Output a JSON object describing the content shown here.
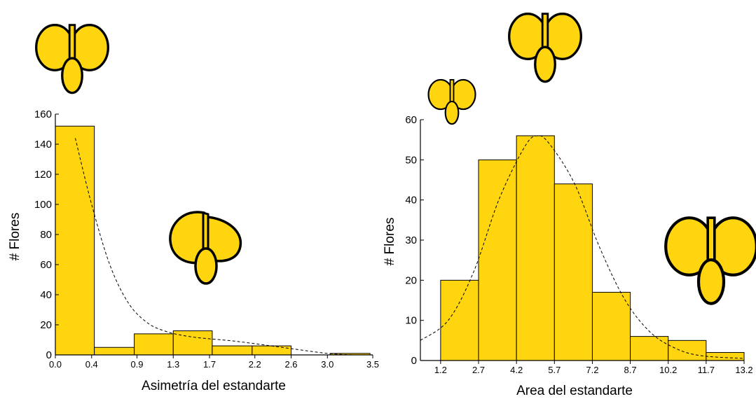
{
  "chart_data": [
    {
      "type": "bar",
      "title": "",
      "xlabel": "Asimetría del estandarte",
      "ylabel": "# Flores",
      "xlim": [
        0.0,
        3.5
      ],
      "ylim": [
        0,
        160
      ],
      "xticks": [
        "0.0",
        "0.4",
        "0.9",
        "1.3",
        "1.7",
        "2.2",
        "2.6",
        "3.0",
        "3.5"
      ],
      "yticks": [
        "0",
        "20",
        "40",
        "60",
        "80",
        "100",
        "120",
        "140",
        "160"
      ],
      "bins": [
        [
          0.0,
          0.43
        ],
        [
          0.43,
          0.87
        ],
        [
          0.87,
          1.3
        ],
        [
          1.3,
          1.73
        ],
        [
          1.73,
          2.17
        ],
        [
          2.17,
          2.6
        ],
        [
          2.6,
          3.03
        ],
        [
          3.03,
          3.47
        ]
      ],
      "values": [
        152,
        5,
        14,
        16,
        6,
        6,
        0,
        1
      ],
      "fit_curve": {
        "style": "dashed",
        "x": [
          0.22,
          0.4,
          0.6,
          0.8,
          1.0,
          1.2,
          1.5,
          2.0,
          2.5,
          3.0,
          3.3
        ],
        "y": [
          144,
          100,
          60,
          35,
          22,
          16,
          12,
          9,
          5,
          1,
          0
        ]
      },
      "grid": false,
      "legend": "none"
    },
    {
      "type": "bar",
      "title": "",
      "xlabel": "Area del estandarte",
      "ylabel": "# Flores",
      "xlim": [
        0.4,
        13.2
      ],
      "ylim": [
        0,
        60
      ],
      "xticks": [
        "1.2",
        "2.7",
        "4.2",
        "5.7",
        "7.2",
        "8.7",
        "10.2",
        "11.7",
        "13.2"
      ],
      "yticks": [
        "0",
        "10",
        "20",
        "30",
        "40",
        "50",
        "60"
      ],
      "bins": [
        [
          1.2,
          2.7
        ],
        [
          2.7,
          4.2
        ],
        [
          4.2,
          5.7
        ],
        [
          5.7,
          7.2
        ],
        [
          7.2,
          8.7
        ],
        [
          8.7,
          10.2
        ],
        [
          10.2,
          11.7
        ],
        [
          11.7,
          13.2
        ]
      ],
      "values": [
        20,
        50,
        56,
        44,
        17,
        6,
        5,
        2
      ],
      "fit_curve": {
        "style": "dashed",
        "x": [
          0.4,
          1.5,
          2.5,
          3.5,
          4.5,
          5.0,
          5.5,
          6.5,
          7.5,
          8.5,
          9.5,
          10.5,
          11.5,
          13.2
        ],
        "y": [
          5,
          10,
          22,
          40,
          53,
          56,
          54,
          44,
          28,
          15,
          7,
          3,
          1.2,
          0.5
        ]
      },
      "grid": false,
      "legend": "none"
    }
  ],
  "colors": {
    "bar_fill": "#FFD50F",
    "bar_edge": "#000000",
    "flower_fill": "#FFD50F",
    "flower_edge": "#000000"
  },
  "icons": [
    "flower-symmetric-icon",
    "flower-asymmetric-icon",
    "flower-small-icon",
    "flower-medium-icon",
    "flower-large-icon"
  ]
}
